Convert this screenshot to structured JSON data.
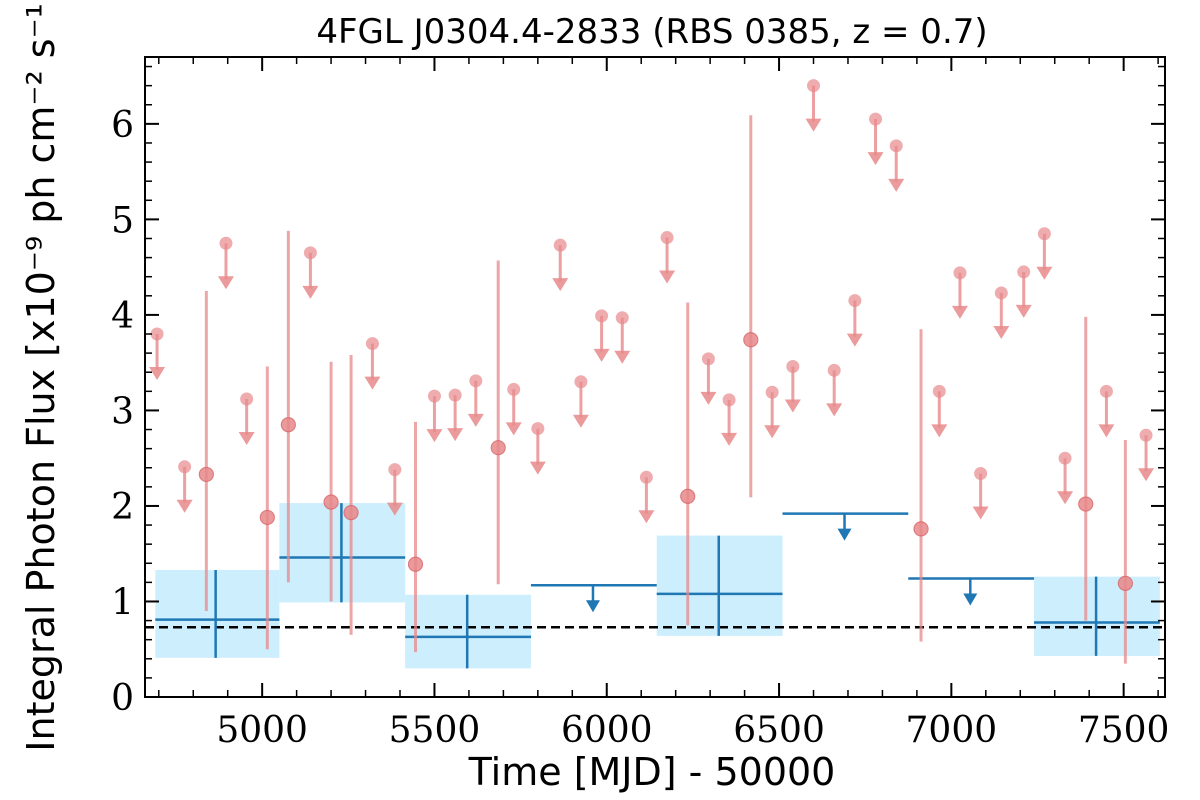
{
  "chart_data": {
    "type": "scatter",
    "title": "4FGL J0304.4-2833 (RBS 0385, z = 0.7)",
    "xlabel": "Time [MJD] - 50000",
    "ylabel": "Integral Photon Flux [x10⁻⁹ ph cm⁻² s⁻¹]",
    "xlim": [
      4660,
      7620
    ],
    "ylim": [
      0,
      6.7
    ],
    "x_ticks": [
      5000,
      5500,
      6000,
      6500,
      7000,
      7500
    ],
    "y_ticks": [
      0,
      1,
      2,
      3,
      4,
      5,
      6
    ],
    "x_tick_labels": [
      "5000",
      "5500",
      "6000",
      "6500",
      "7000",
      "7500"
    ],
    "y_tick_labels": [
      "0",
      "1",
      "2",
      "3",
      "4",
      "5",
      "6"
    ],
    "mean_flux_line": 0.73,
    "colors": {
      "fine_bins": "#e8898b",
      "coarse_bins": "#1f77b4",
      "coarse_box": "#cdeefc",
      "mean_line": "#000000"
    },
    "fine_bin_detections": [
      {
        "x": 4838,
        "y": 2.33,
        "ylo": 0.9,
        "yhi": 4.25
      },
      {
        "x": 5015,
        "y": 1.88,
        "ylo": 0.5,
        "yhi": 3.46
      },
      {
        "x": 5076,
        "y": 2.85,
        "ylo": 1.2,
        "yhi": 4.88
      },
      {
        "x": 5200,
        "y": 2.04,
        "ylo": 1.0,
        "yhi": 3.51
      },
      {
        "x": 5258,
        "y": 1.93,
        "ylo": 0.65,
        "yhi": 3.58
      },
      {
        "x": 5445,
        "y": 1.39,
        "ylo": 0.47,
        "yhi": 2.88
      },
      {
        "x": 5685,
        "y": 2.61,
        "ylo": 1.18,
        "yhi": 4.57
      },
      {
        "x": 6235,
        "y": 2.1,
        "ylo": 0.75,
        "yhi": 4.13
      },
      {
        "x": 6418,
        "y": 3.74,
        "ylo": 2.09,
        "yhi": 6.09
      },
      {
        "x": 6912,
        "y": 1.76,
        "ylo": 0.58,
        "yhi": 3.85
      },
      {
        "x": 7390,
        "y": 2.02,
        "ylo": 0.8,
        "yhi": 3.98
      },
      {
        "x": 7505,
        "y": 1.19,
        "ylo": 0.35,
        "yhi": 2.69
      }
    ],
    "fine_bin_upper_limits": [
      {
        "x": 4695,
        "y": 3.8
      },
      {
        "x": 4775,
        "y": 2.41
      },
      {
        "x": 4895,
        "y": 4.75
      },
      {
        "x": 4955,
        "y": 3.12
      },
      {
        "x": 5140,
        "y": 4.65
      },
      {
        "x": 5320,
        "y": 3.7
      },
      {
        "x": 5385,
        "y": 2.38
      },
      {
        "x": 5500,
        "y": 3.15
      },
      {
        "x": 5560,
        "y": 3.16
      },
      {
        "x": 5620,
        "y": 3.31
      },
      {
        "x": 5730,
        "y": 3.22
      },
      {
        "x": 5800,
        "y": 2.81
      },
      {
        "x": 5865,
        "y": 4.73
      },
      {
        "x": 5925,
        "y": 3.3
      },
      {
        "x": 5985,
        "y": 3.99
      },
      {
        "x": 6045,
        "y": 3.97
      },
      {
        "x": 6115,
        "y": 2.3
      },
      {
        "x": 6175,
        "y": 4.81
      },
      {
        "x": 6295,
        "y": 3.54
      },
      {
        "x": 6355,
        "y": 3.11
      },
      {
        "x": 6480,
        "y": 3.19
      },
      {
        "x": 6540,
        "y": 3.46
      },
      {
        "x": 6600,
        "y": 6.4
      },
      {
        "x": 6660,
        "y": 3.42
      },
      {
        "x": 6720,
        "y": 4.15
      },
      {
        "x": 6780,
        "y": 6.05
      },
      {
        "x": 6840,
        "y": 5.77
      },
      {
        "x": 6965,
        "y": 3.2
      },
      {
        "x": 7025,
        "y": 4.44
      },
      {
        "x": 7085,
        "y": 2.34
      },
      {
        "x": 7145,
        "y": 4.23
      },
      {
        "x": 7210,
        "y": 4.45
      },
      {
        "x": 7270,
        "y": 4.85
      },
      {
        "x": 7330,
        "y": 2.5
      },
      {
        "x": 7450,
        "y": 3.2
      },
      {
        "x": 7565,
        "y": 2.74
      }
    ],
    "coarse_bin_detections": [
      {
        "x0": 4690,
        "x1": 5050,
        "xc": 4865,
        "y": 0.81,
        "ylo": 0.41,
        "yhi": 1.33
      },
      {
        "x0": 5050,
        "x1": 5415,
        "xc": 5230,
        "y": 1.46,
        "ylo": 0.99,
        "yhi": 2.03
      },
      {
        "x0": 5415,
        "x1": 5780,
        "xc": 5595,
        "y": 0.63,
        "ylo": 0.3,
        "yhi": 1.07
      },
      {
        "x0": 6145,
        "x1": 6510,
        "xc": 6325,
        "y": 1.08,
        "ylo": 0.64,
        "yhi": 1.69
      },
      {
        "x0": 7240,
        "x1": 7605,
        "xc": 7420,
        "y": 0.78,
        "ylo": 0.43,
        "yhi": 1.26
      }
    ],
    "coarse_bin_upper_limits": [
      {
        "x0": 5780,
        "x1": 6145,
        "xc": 5960,
        "y": 1.17
      },
      {
        "x0": 6510,
        "x1": 6875,
        "xc": 6690,
        "y": 1.92
      },
      {
        "x0": 6875,
        "x1": 7240,
        "xc": 7055,
        "y": 1.24
      }
    ]
  }
}
